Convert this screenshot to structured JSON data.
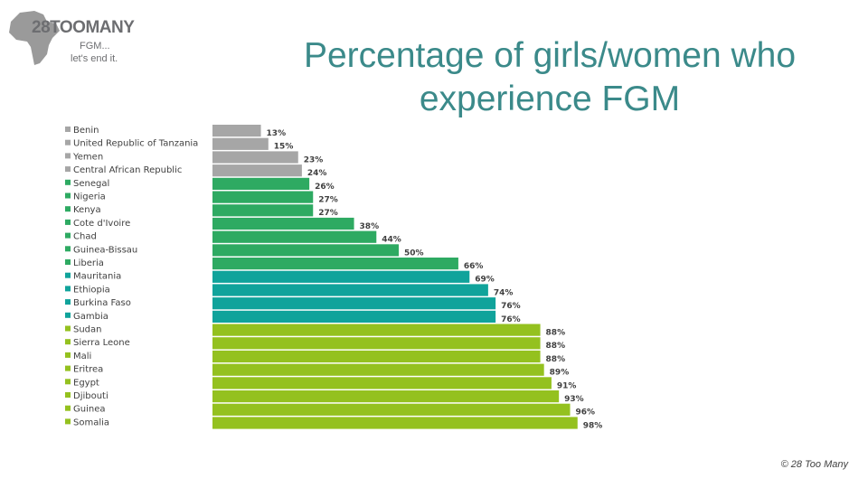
{
  "logo": {
    "number": "28",
    "name": "TOOMANY",
    "tagline_1": "FGM...",
    "tagline_2": "let's end it."
  },
  "title": "Percentage of girls/women who experience FGM",
  "copyright": "© 28 Too Many",
  "colors": {
    "grey": "#a6a6a6",
    "green": "#2eaa62",
    "teal": "#10a39b",
    "lime": "#94c11f",
    "title": "#3b8a8a"
  },
  "chart_data": {
    "type": "bar",
    "orientation": "horizontal",
    "title": "Percentage of girls/women who experience FGM",
    "xlabel": "",
    "ylabel": "",
    "xlim": [
      0,
      100
    ],
    "grid": false,
    "legend": "left",
    "categories": [
      "Benin",
      "United Republic of Tanzania",
      "Yemen",
      "Central African Republic",
      "Senegal",
      "Nigeria",
      "Kenya",
      "Cote d'Ivoire",
      "Chad",
      "Guinea-Bissau",
      "Liberia",
      "Mauritania",
      "Ethiopia",
      "Burkina Faso",
      "Gambia",
      "Sudan",
      "Sierra Leone",
      "Mali",
      "Eritrea",
      "Egypt",
      "Djibouti",
      "Guinea",
      "Somalia"
    ],
    "values": [
      13,
      15,
      23,
      24,
      26,
      27,
      27,
      38,
      44,
      50,
      66,
      69,
      74,
      76,
      76,
      88,
      88,
      88,
      89,
      91,
      93,
      96,
      98
    ],
    "value_labels": [
      "13%",
      "15%",
      "23%",
      "24%",
      "26%",
      "27%",
      "27%",
      "38%",
      "44%",
      "50%",
      "66%",
      "69%",
      "74%",
      "76%",
      "76%",
      "88%",
      "88%",
      "88%",
      "89%",
      "91%",
      "93%",
      "96%",
      "98%"
    ],
    "color_groups": [
      "grey",
      "grey",
      "grey",
      "grey",
      "green",
      "green",
      "green",
      "green",
      "green",
      "green",
      "green",
      "teal",
      "teal",
      "teal",
      "teal",
      "lime",
      "lime",
      "lime",
      "lime",
      "lime",
      "lime",
      "lime",
      "lime"
    ]
  }
}
